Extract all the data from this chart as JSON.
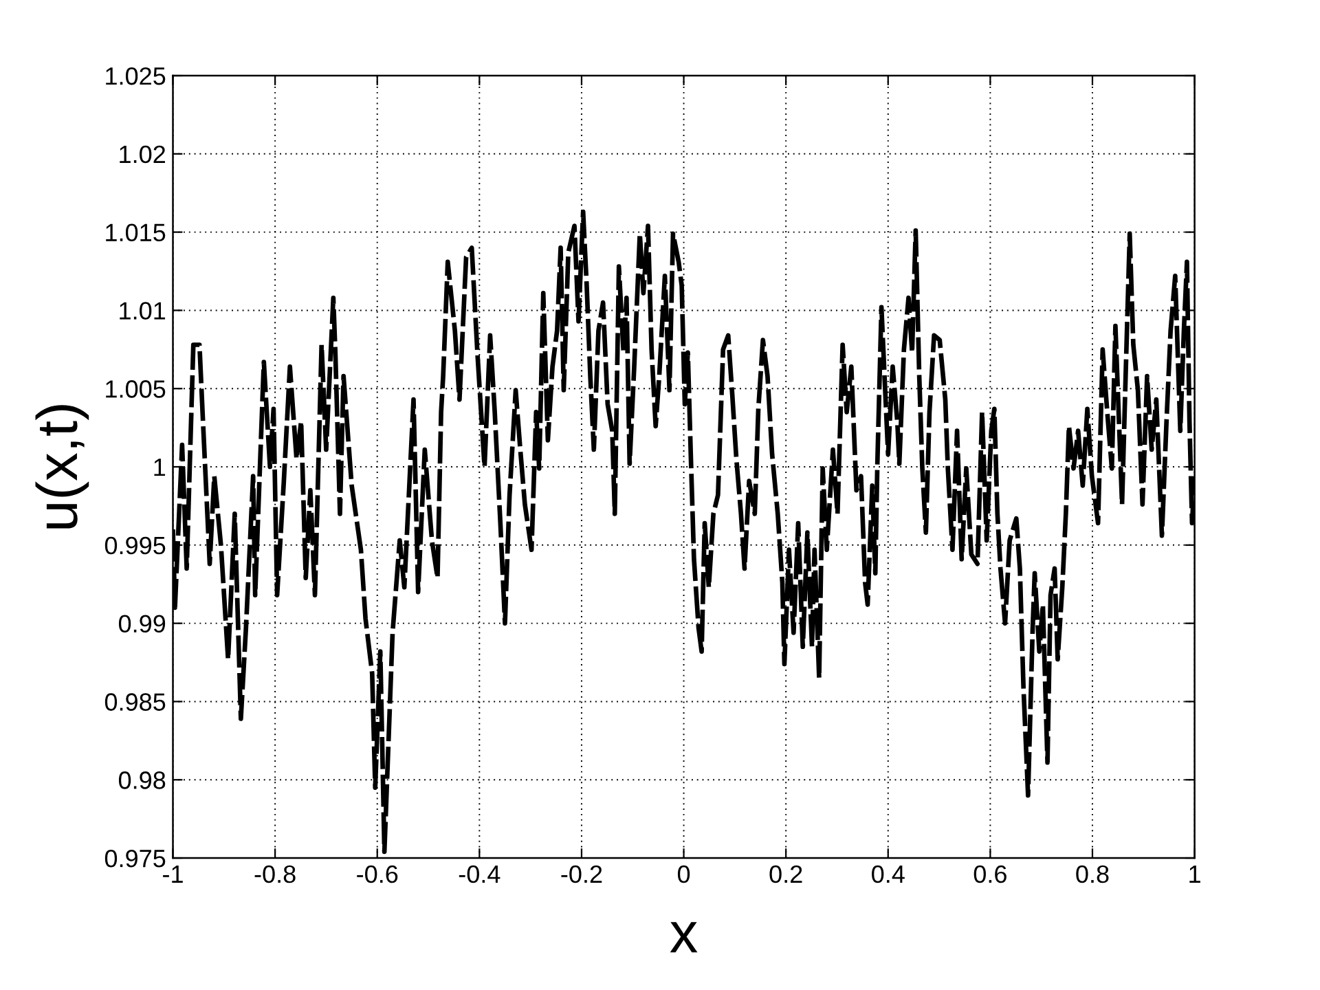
{
  "chart_data": {
    "type": "line",
    "xlabel": "x",
    "ylabel": "u(x,t)",
    "xlim": [
      -1,
      1
    ],
    "ylim": [
      0.975,
      1.025
    ],
    "xticks": [
      -1,
      -0.8,
      -0.6,
      -0.4,
      -0.2,
      0,
      0.2,
      0.4,
      0.6,
      0.8,
      1
    ],
    "yticks": [
      0.975,
      0.98,
      0.985,
      0.99,
      0.995,
      1,
      1.005,
      1.01,
      1.015,
      1.02,
      1.025
    ],
    "grid": true,
    "line_style": "dashed",
    "series": [
      {
        "color": "#000000",
        "x": [
          -1.0,
          -0.996,
          -0.982,
          -0.973,
          -0.96,
          -0.948,
          -0.942,
          -0.928,
          -0.919,
          -0.906,
          -0.892,
          -0.879,
          -0.867,
          -0.857,
          -0.843,
          -0.839,
          -0.822,
          -0.81,
          -0.803,
          -0.796,
          -0.783,
          -0.771,
          -0.758,
          -0.749,
          -0.74,
          -0.731,
          -0.722,
          -0.709,
          -0.7,
          -0.686,
          -0.682,
          -0.673,
          -0.666,
          -0.65,
          -0.632,
          -0.623,
          -0.61,
          -0.604,
          -0.594,
          -0.586,
          -0.578,
          -0.57,
          -0.556,
          -0.547,
          -0.529,
          -0.52,
          -0.507,
          -0.493,
          -0.482,
          -0.475,
          -0.471,
          -0.462,
          -0.448,
          -0.439,
          -0.426,
          -0.415,
          -0.404,
          -0.39,
          -0.379,
          -0.37,
          -0.359,
          -0.35,
          -0.341,
          -0.329,
          -0.32,
          -0.311,
          -0.298,
          -0.289,
          -0.283,
          -0.275,
          -0.266,
          -0.257,
          -0.248,
          -0.241,
          -0.235,
          -0.226,
          -0.214,
          -0.206,
          -0.197,
          -0.19,
          -0.183,
          -0.176,
          -0.167,
          -0.158,
          -0.149,
          -0.14,
          -0.135,
          -0.127,
          -0.118,
          -0.112,
          -0.106,
          -0.097,
          -0.086,
          -0.079,
          -0.07,
          -0.063,
          -0.055,
          -0.048,
          -0.037,
          -0.028,
          -0.021,
          -0.01,
          -0.004,
          0.002,
          0.008,
          0.014,
          0.02,
          0.029,
          0.035,
          0.041,
          0.049,
          0.058,
          0.067,
          0.077,
          0.087,
          0.095,
          0.103,
          0.112,
          0.119,
          0.128,
          0.139,
          0.146,
          0.155,
          0.164,
          0.173,
          0.184,
          0.193,
          0.197,
          0.206,
          0.215,
          0.224,
          0.233,
          0.242,
          0.251,
          0.256,
          0.265,
          0.272,
          0.28,
          0.292,
          0.301,
          0.311,
          0.319,
          0.328,
          0.338,
          0.347,
          0.355,
          0.36,
          0.369,
          0.375,
          0.379,
          0.387,
          0.393,
          0.4,
          0.409,
          0.418,
          0.422,
          0.431,
          0.44,
          0.447,
          0.454,
          0.461,
          0.467,
          0.474,
          0.481,
          0.49,
          0.501,
          0.512,
          0.517,
          0.526,
          0.535,
          0.544,
          0.553,
          0.563,
          0.575,
          0.584,
          0.593,
          0.602,
          0.608,
          0.614,
          0.62,
          0.629,
          0.638,
          0.651,
          0.658,
          0.665,
          0.674,
          0.683,
          0.687,
          0.696,
          0.703,
          0.712,
          0.718,
          0.726,
          0.732,
          0.741,
          0.748,
          0.754,
          0.763,
          0.772,
          0.781,
          0.79,
          0.799,
          0.811,
          0.82,
          0.829,
          0.838,
          0.845,
          0.858,
          0.865,
          0.873,
          0.88,
          0.889,
          0.898,
          0.907,
          0.916,
          0.925,
          0.936,
          0.945,
          0.953,
          0.962,
          0.972,
          0.979,
          0.985,
          0.99,
          0.995,
          1.0
        ],
        "values": [
          0.996,
          0.991,
          1.0014,
          0.9935,
          1.0078,
          1.0078,
          1.0035,
          0.9938,
          0.9994,
          0.995,
          0.9877,
          0.997,
          0.9839,
          0.9897,
          0.9994,
          0.9918,
          1.0067,
          1.0,
          1.0037,
          0.9918,
          0.999,
          1.0064,
          1.0005,
          1.0029,
          0.9929,
          0.9985,
          0.9918,
          1.0078,
          1.0011,
          1.0108,
          1.0073,
          0.997,
          1.0058,
          0.9988,
          0.9947,
          0.9903,
          0.9868,
          0.9795,
          0.9882,
          0.9754,
          0.9824,
          0.9894,
          0.9953,
          0.9923,
          1.0043,
          0.992,
          1.0011,
          0.9953,
          0.9929,
          1.0035,
          1.0058,
          1.0131,
          1.0087,
          1.0043,
          1.0134,
          1.014,
          1.0073,
          1.0,
          1.0084,
          1.0035,
          0.9964,
          0.99,
          0.9982,
          1.0049,
          1.0011,
          0.9976,
          0.9947,
          1.0035,
          0.9999,
          1.0111,
          1.0017,
          1.0064,
          1.0087,
          1.014,
          1.0049,
          1.0137,
          1.0154,
          1.0093,
          1.0163,
          1.0116,
          1.0058,
          1.0011,
          1.0087,
          1.0105,
          1.004,
          1.0023,
          0.997,
          1.0128,
          1.0073,
          1.0108,
          1.0002,
          1.0064,
          1.0149,
          1.0111,
          1.0154,
          1.0075,
          1.0026,
          1.0058,
          1.0122,
          1.0049,
          1.0149,
          1.0131,
          1.0116,
          1.004,
          1.0073,
          1.0005,
          0.9941,
          0.9897,
          0.9882,
          0.9964,
          0.9923,
          0.997,
          0.9982,
          1.0075,
          1.0084,
          1.0046,
          1.0005,
          0.997,
          0.9935,
          0.9991,
          0.997,
          1.0037,
          1.0081,
          1.0058,
          1.0008,
          0.997,
          0.9926,
          0.9874,
          0.9947,
          0.9894,
          0.9964,
          0.9885,
          0.9958,
          0.9885,
          0.9947,
          0.9865,
          0.9999,
          0.9947,
          1.0011,
          0.997,
          1.0078,
          1.0035,
          1.0064,
          0.9985,
          0.9994,
          0.9926,
          0.9912,
          0.9988,
          0.9932,
          1.0002,
          1.0102,
          1.0058,
          1.0008,
          1.0064,
          1.0029,
          1.0002,
          1.0075,
          1.0108,
          1.0073,
          1.0151,
          1.0058,
          0.9999,
          0.9958,
          1.0035,
          1.0084,
          1.0081,
          1.0043,
          0.9999,
          0.9947,
          1.0023,
          0.9941,
          0.9999,
          0.9944,
          0.9938,
          1.0035,
          0.9953,
          1.0023,
          1.0037,
          0.997,
          0.9935,
          0.99,
          0.9953,
          0.9967,
          0.9935,
          0.9859,
          0.979,
          0.9897,
          0.9932,
          0.9882,
          0.9912,
          0.9811,
          0.9918,
          0.9935,
          0.9877,
          0.9923,
          0.997,
          1.0026,
          0.9999,
          1.0023,
          0.9988,
          1.0037,
          0.9994,
          0.9964,
          1.0075,
          1.0035,
          0.9999,
          1.009,
          0.9976,
          1.0058,
          1.0149,
          1.0078,
          1.0049,
          0.9976,
          1.0058,
          1.0011,
          1.0043,
          0.9956,
          1.0029,
          1.0087,
          1.0122,
          1.0023,
          1.0087,
          1.0131,
          1.0029,
          0.9964,
          0.9994
        ]
      }
    ]
  }
}
